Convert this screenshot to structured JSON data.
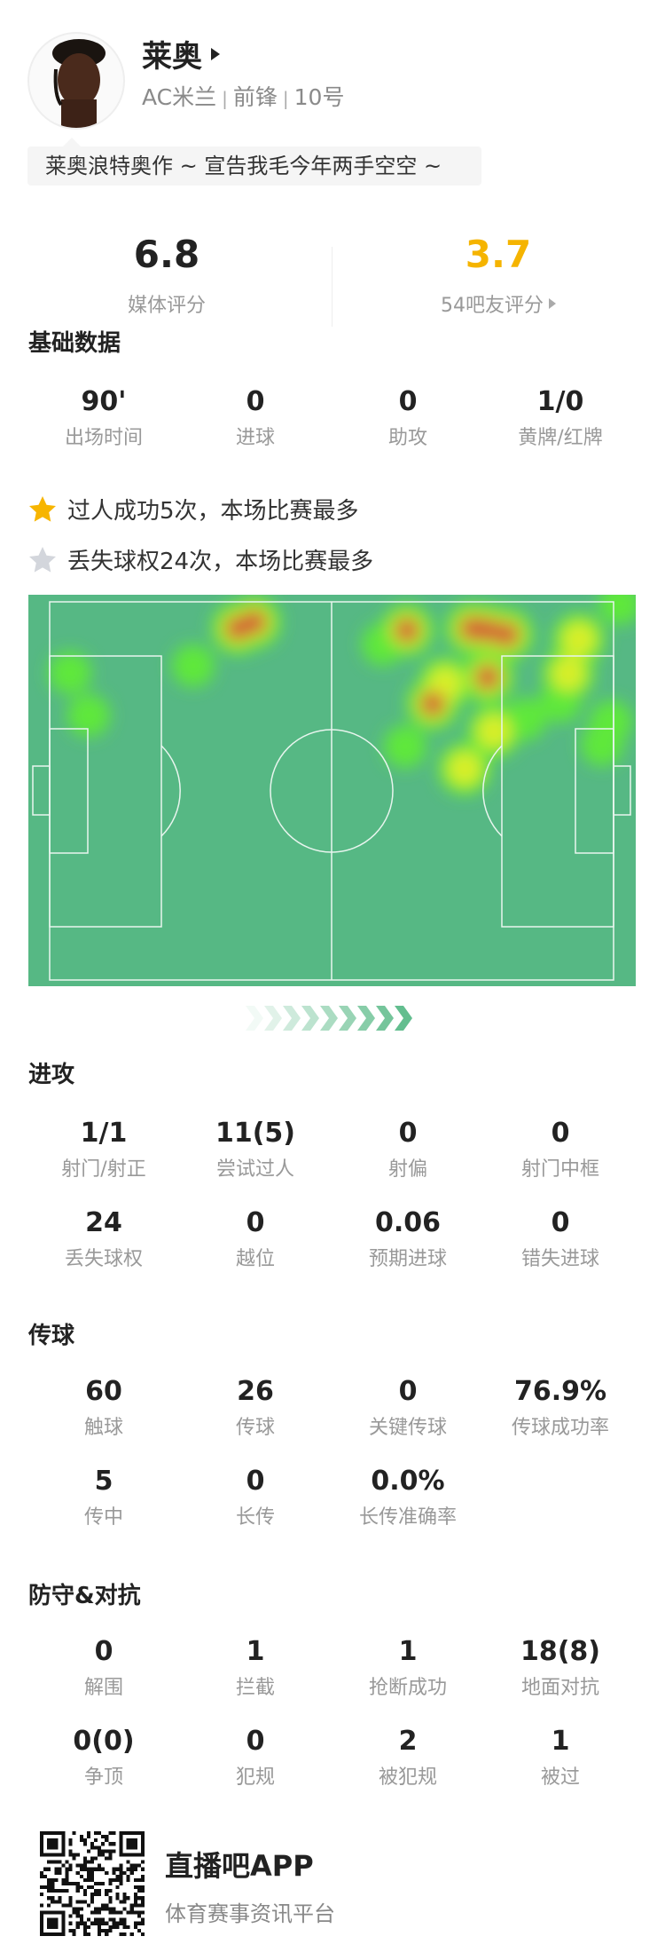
{
  "player": {
    "name": "莱奥",
    "team": "AC米兰",
    "position": "前锋",
    "number": "10号",
    "separator": "|",
    "quote": "莱奥浪特奥作 ~ 宣告我毛今年两手空空 ~"
  },
  "ratings": {
    "media": {
      "value": "6.8",
      "label": "媒体评分"
    },
    "fans": {
      "value": "3.7",
      "label": "54吧友评分"
    },
    "fan_color": "#f5b400"
  },
  "basic": {
    "title": "基础数据",
    "stats": [
      {
        "value": "90'",
        "label": "出场时间"
      },
      {
        "value": "0",
        "label": "进球"
      },
      {
        "value": "0",
        "label": "助攻"
      },
      {
        "value": "1/0",
        "label": "黄牌/红牌"
      }
    ]
  },
  "highlights": [
    {
      "icon": "star-gold-icon",
      "text": "过人成功5次，本场比赛最多"
    },
    {
      "icon": "star-silver-icon",
      "text": "丢失球权24次，本场比赛最多"
    }
  ],
  "attack": {
    "title": "进攻",
    "stats": [
      {
        "value": "1/1",
        "label": "射门/射正"
      },
      {
        "value": "11(5)",
        "label": "尝试过人"
      },
      {
        "value": "0",
        "label": "射偏"
      },
      {
        "value": "0",
        "label": "射门中框"
      },
      {
        "value": "24",
        "label": "丢失球权"
      },
      {
        "value": "0",
        "label": "越位"
      },
      {
        "value": "0.06",
        "label": "预期进球"
      },
      {
        "value": "0",
        "label": "错失进球"
      }
    ]
  },
  "passing": {
    "title": "传球",
    "stats": [
      {
        "value": "60",
        "label": "触球"
      },
      {
        "value": "26",
        "label": "传球"
      },
      {
        "value": "0",
        "label": "关键传球"
      },
      {
        "value": "76.9%",
        "label": "传球成功率"
      },
      {
        "value": "5",
        "label": "传中"
      },
      {
        "value": "0",
        "label": "长传"
      },
      {
        "value": "0.0%",
        "label": "长传准确率"
      }
    ]
  },
  "defense": {
    "title": "防守&对抗",
    "stats": [
      {
        "value": "0",
        "label": "解围"
      },
      {
        "value": "1",
        "label": "拦截"
      },
      {
        "value": "1",
        "label": "抢断成功"
      },
      {
        "value": "18(8)",
        "label": "地面对抗"
      },
      {
        "value": "0(0)",
        "label": "争顶"
      },
      {
        "value": "0",
        "label": "犯规"
      },
      {
        "value": "2",
        "label": "被犯规"
      },
      {
        "value": "1",
        "label": "被过"
      }
    ]
  },
  "footer": {
    "app_name": "直播吧APP",
    "tagline": "体育赛事资讯平台"
  },
  "colors": {
    "pitch": "#56b884",
    "accent_green": "#5dbb8a"
  }
}
